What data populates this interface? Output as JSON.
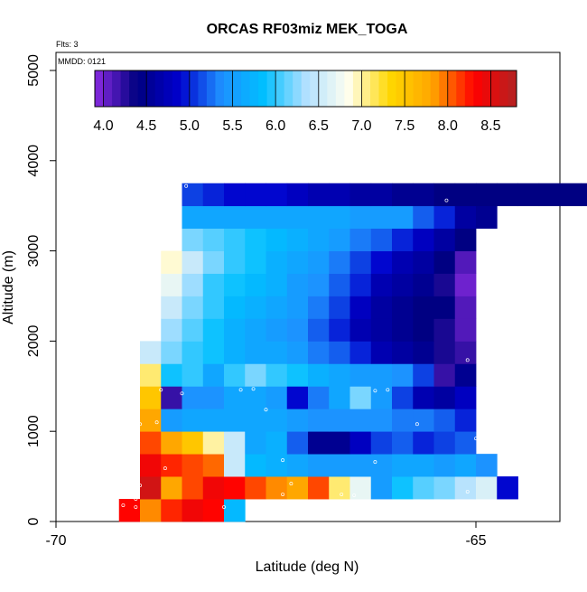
{
  "chart_data": {
    "type": "heatmap",
    "title": "ORCAS RF03miz MEK_TOGA",
    "annotations": {
      "flights": "Flts: 3",
      "date": "MMDD: 0121"
    },
    "xlabel": "Latitude (deg N)",
    "ylabel": "Altitude (m)",
    "xlim": [
      -70.0,
      -64.0
    ],
    "ylim": [
      0,
      5200
    ],
    "x_ticks": [
      -70,
      -65
    ],
    "x_tick_labels": [
      "-70",
      "-65"
    ],
    "y_ticks": [
      0,
      1000,
      2000,
      3000,
      4000,
      5000
    ],
    "y_tick_labels": [
      "0",
      "1000",
      "2000",
      "3000",
      "4000",
      "5000"
    ],
    "cell_width_deg": 0.25,
    "altitude_bins_m": [
      0,
      250,
      500,
      750,
      1000,
      1250,
      1500,
      1750,
      2000,
      2250,
      2500,
      2750,
      3000,
      3250,
      3500
    ],
    "rows": [
      {
        "alt_m": 0,
        "lat_start": -69.25,
        "values": [
          8.3,
          7.9,
          8.2,
          8.4,
          8.3,
          5.8
        ]
      },
      {
        "alt_m": 250,
        "lat_start": -69.0,
        "values": [
          8.6,
          7.8,
          8.1,
          8.4,
          8.3,
          8.1,
          7.9,
          7.8,
          8.1,
          7.1,
          6.7,
          5.5,
          5.9,
          6.1,
          6.2,
          6.4,
          6.6,
          4.9
        ]
      },
      {
        "alt_m": 500,
        "lat_start": -69.0,
        "values": [
          8.4,
          8.2,
          8.1,
          8.0,
          6.5,
          5.8,
          5.7,
          5.6,
          5.5,
          5.5,
          5.5,
          5.5,
          5.6,
          5.6,
          5.5,
          5.6,
          5.4
        ]
      },
      {
        "alt_m": 750,
        "lat_start": -69.0,
        "values": [
          8.1,
          7.8,
          7.5,
          7.0,
          6.5,
          5.6,
          5.7,
          5.2,
          4.5,
          4.5,
          4.8,
          5.1,
          5.2,
          5.0,
          5.1,
          5.2
        ]
      },
      {
        "alt_m": 1000,
        "lat_start": -69.0,
        "values": [
          7.8,
          5.5,
          5.6,
          5.6,
          5.6,
          5.6,
          5.6,
          5.5,
          5.4,
          5.4,
          5.4,
          5.4,
          5.3,
          5.3,
          5.2,
          5.0
        ]
      },
      {
        "alt_m": 1250,
        "lat_start": -69.0,
        "values": [
          7.5,
          4.2,
          5.4,
          5.4,
          5.6,
          5.6,
          5.5,
          4.9,
          5.3,
          5.6,
          6.2,
          5.5,
          5.1,
          4.7,
          4.6,
          4.8
        ]
      },
      {
        "alt_m": 1500,
        "lat_start": -69.0,
        "values": [
          7.1,
          5.9,
          6.0,
          5.6,
          6.0,
          6.2,
          6.0,
          5.9,
          5.7,
          5.6,
          5.5,
          5.5,
          5.4,
          5.1,
          4.2,
          4.5
        ]
      },
      {
        "alt_m": 1750,
        "lat_start": -69.0,
        "values": [
          6.5,
          6.2,
          6.0,
          5.9,
          5.7,
          5.6,
          5.6,
          5.5,
          5.3,
          5.2,
          5.0,
          4.7,
          4.6,
          4.5,
          4.3,
          4.2
        ]
      },
      {
        "alt_m": 2000,
        "lat_start": -68.75,
        "values": [
          6.3,
          6.1,
          5.9,
          5.7,
          5.6,
          5.5,
          5.4,
          5.2,
          5.0,
          4.7,
          4.6,
          4.5,
          4.4,
          4.3,
          4.1
        ]
      },
      {
        "alt_m": 2250,
        "lat_start": -68.75,
        "values": [
          6.5,
          6.2,
          6.0,
          5.8,
          5.7,
          5.6,
          5.5,
          5.3,
          5.1,
          4.8,
          4.6,
          4.5,
          4.4,
          4.4,
          4.1
        ]
      },
      {
        "alt_m": 2500,
        "lat_start": -68.75,
        "values": [
          6.7,
          6.3,
          6.0,
          5.9,
          5.8,
          5.7,
          5.5,
          5.4,
          5.2,
          5.0,
          4.7,
          4.6,
          4.5,
          4.3,
          4.0
        ]
      },
      {
        "alt_m": 2750,
        "lat_start": -68.75,
        "values": [
          6.9,
          6.5,
          6.2,
          6.0,
          5.9,
          5.7,
          5.6,
          5.5,
          5.3,
          5.1,
          4.9,
          4.7,
          4.6,
          4.4,
          4.1
        ]
      },
      {
        "alt_m": 3000,
        "lat_start": -68.5,
        "values": [
          6.2,
          6.1,
          6.0,
          5.9,
          5.8,
          5.7,
          5.6,
          5.5,
          5.3,
          5.2,
          5.0,
          4.8,
          4.6,
          4.4
        ]
      },
      {
        "alt_m": 3250,
        "lat_start": -68.5,
        "values": [
          5.6,
          5.6,
          5.6,
          5.6,
          5.6,
          5.6,
          5.6,
          5.6,
          5.5,
          5.5,
          5.5,
          5.2,
          5.0,
          4.6,
          4.5
        ]
      },
      {
        "alt_m": 3500,
        "lat_start": -68.5,
        "values": [
          5.1,
          5.0,
          4.9,
          4.9,
          4.9,
          4.8,
          4.7,
          4.7,
          4.6,
          4.6,
          4.5,
          4.5,
          4.4,
          4.4,
          4.4,
          4.4,
          4.4,
          4.4,
          4.4,
          4.4
        ]
      }
    ],
    "colorbar": {
      "min": 3.9,
      "max": 8.8,
      "ticks": [
        4.0,
        4.5,
        5.0,
        5.5,
        6.0,
        6.5,
        7.0,
        7.5,
        8.0,
        8.5
      ],
      "tick_labels": [
        "4.0",
        "4.5",
        "5.0",
        "5.5",
        "6.0",
        "6.5",
        "7.0",
        "7.5",
        "8.0",
        "8.5"
      ],
      "stops": [
        "#8a2be2",
        "#000080",
        "#0000cd",
        "#1e90ff",
        "#00bfff",
        "#b0e0ff",
        "#fffff0",
        "#ffd700",
        "#ffa500",
        "#ff0000",
        "#b22222"
      ]
    },
    "sample_points": [
      [
        -68.45,
        3720
      ],
      [
        -65.35,
        3560
      ],
      [
        -64.8,
        2680
      ],
      [
        -65.1,
        1790
      ],
      [
        -68.75,
        1460
      ],
      [
        -68.5,
        1420
      ],
      [
        -67.8,
        1460
      ],
      [
        -67.65,
        1470
      ],
      [
        -67.5,
        1240
      ],
      [
        -66.2,
        1450
      ],
      [
        -66.05,
        1460
      ],
      [
        -65.7,
        1080
      ],
      [
        -65.0,
        920
      ],
      [
        -68.8,
        1100
      ],
      [
        -69.0,
        1080
      ],
      [
        -67.3,
        680
      ],
      [
        -66.2,
        660
      ],
      [
        -67.2,
        420
      ],
      [
        -67.3,
        300
      ],
      [
        -66.6,
        300
      ],
      [
        -66.45,
        290
      ],
      [
        -65.1,
        330
      ],
      [
        -68.7,
        590
      ],
      [
        -69.0,
        400
      ],
      [
        -69.05,
        250
      ],
      [
        -69.2,
        180
      ],
      [
        -69.05,
        160
      ],
      [
        -68.0,
        160
      ]
    ]
  }
}
